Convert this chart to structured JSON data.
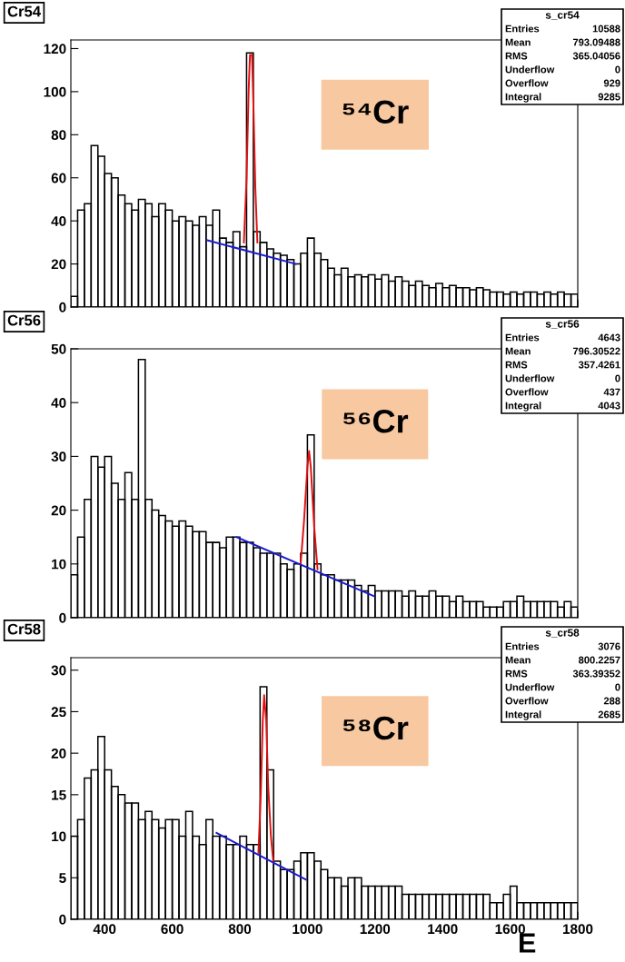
{
  "chart_data": [
    {
      "type": "histogram",
      "title": "Cr54",
      "xlim": [
        300,
        1800
      ],
      "ylim": [
        0,
        124
      ],
      "xticks": [
        400,
        600,
        800,
        1000,
        1200,
        1400,
        1600,
        1800
      ],
      "yticks": [
        0,
        20,
        40,
        60,
        80,
        100,
        120
      ],
      "tick_labels": "y",
      "grid": false,
      "legend": false,
      "annotations": [
        "⁵⁴Cr",
        "s_cr54",
        "Entries",
        "10588",
        "Mean",
        "793.09488",
        "RMS",
        "365.04056",
        "Underflow",
        "0",
        "Overflow",
        "929",
        "Integral",
        "9285"
      ],
      "series": [
        {
          "type": "histogram",
          "color": "#000000",
          "bins": [
            300,
            320,
            340,
            360,
            380,
            400,
            420,
            440,
            460,
            480,
            500,
            520,
            540,
            560,
            580,
            600,
            620,
            640,
            660,
            680,
            700,
            720,
            740,
            760,
            780,
            800,
            820,
            840,
            860,
            880,
            900,
            920,
            940,
            960,
            980,
            1000,
            1020,
            1040,
            1060,
            1080,
            1100,
            1120,
            1140,
            1160,
            1180,
            1200,
            1220,
            1240,
            1260,
            1280,
            1300,
            1320,
            1340,
            1360,
            1380,
            1400,
            1420,
            1440,
            1460,
            1480,
            1500,
            1520,
            1540,
            1560,
            1580,
            1600,
            1620,
            1640,
            1660,
            1680,
            1700,
            1720,
            1740,
            1760,
            1780,
            1800
          ],
          "values": [
            5,
            45,
            48,
            75,
            70,
            62,
            60,
            52,
            48,
            45,
            50,
            48,
            42,
            48,
            45,
            40,
            42,
            40,
            38,
            42,
            38,
            45,
            32,
            30,
            35,
            28,
            118,
            35,
            30,
            27,
            25,
            24,
            22,
            20,
            25,
            32,
            25,
            22,
            18,
            15,
            18,
            14,
            15,
            14,
            15,
            13,
            15,
            12,
            14,
            12,
            10,
            12,
            10,
            9,
            11,
            9,
            10,
            9,
            9,
            8,
            9,
            8,
            7,
            7,
            6,
            7,
            6,
            7,
            7,
            6,
            7,
            6,
            7,
            6,
            6
          ]
        },
        {
          "type": "line",
          "color": "#e01010",
          "x": [
            812,
            820,
            826,
            830,
            836,
            840,
            846,
            852
          ],
          "values": [
            30,
            60,
            100,
            117,
            117,
            95,
            55,
            30
          ]
        },
        {
          "type": "line",
          "color": "#1a1ad0",
          "x": [
            704,
            966
          ],
          "values": [
            31,
            20
          ]
        }
      ]
    },
    {
      "type": "histogram",
      "title": "Cr56",
      "xlim": [
        300,
        1800
      ],
      "ylim": [
        0,
        50
      ],
      "xticks": [
        400,
        600,
        800,
        1000,
        1200,
        1400,
        1600,
        1800
      ],
      "yticks": [
        0,
        10,
        20,
        30,
        40,
        50
      ],
      "tick_labels": "y",
      "grid": false,
      "legend": false,
      "annotations": [
        "⁵⁶Cr",
        "s_cr56",
        "Entries",
        "4643",
        "Mean",
        "796.30522",
        "RMS",
        "357.4261",
        "Underflow",
        "0",
        "Overflow",
        "437",
        "Integral",
        "4043"
      ],
      "series": [
        {
          "type": "histogram",
          "color": "#000000",
          "bins": [
            300,
            320,
            340,
            360,
            380,
            400,
            420,
            440,
            460,
            480,
            500,
            520,
            540,
            560,
            580,
            600,
            620,
            640,
            660,
            680,
            700,
            720,
            740,
            760,
            780,
            800,
            820,
            840,
            860,
            880,
            900,
            920,
            940,
            960,
            980,
            1000,
            1020,
            1040,
            1060,
            1080,
            1100,
            1120,
            1140,
            1160,
            1180,
            1200,
            1220,
            1240,
            1260,
            1280,
            1300,
            1320,
            1340,
            1360,
            1380,
            1400,
            1420,
            1440,
            1460,
            1480,
            1500,
            1520,
            1540,
            1560,
            1580,
            1600,
            1620,
            1640,
            1660,
            1680,
            1700,
            1720,
            1740,
            1760,
            1780,
            1800
          ],
          "values": [
            8,
            15,
            22,
            30,
            28,
            30,
            25,
            22,
            27,
            22,
            48,
            22,
            20,
            19,
            18,
            17,
            18,
            17,
            16,
            16,
            14,
            14,
            13,
            15,
            15,
            14,
            14,
            13,
            12,
            12,
            12,
            10,
            9,
            10,
            12,
            34,
            10,
            8,
            8,
            7,
            7,
            7,
            6,
            5,
            6,
            5,
            5,
            5,
            5,
            4,
            5,
            4,
            4,
            5,
            4,
            4,
            3,
            4,
            3,
            3,
            3,
            2,
            2,
            2,
            3,
            3,
            4,
            3,
            3,
            3,
            3,
            3,
            2,
            3,
            2
          ]
        },
        {
          "type": "line",
          "color": "#e01010",
          "x": [
            980,
            990,
            1000,
            1005,
            1010,
            1020,
            1030
          ],
          "values": [
            10,
            18,
            28,
            31,
            28,
            17,
            9
          ]
        },
        {
          "type": "line",
          "color": "#1a1ad0",
          "x": [
            790,
            1197
          ],
          "values": [
            15,
            4
          ]
        }
      ]
    },
    {
      "type": "histogram",
      "title": "Cr58",
      "xlabel": "E",
      "xlim": [
        300,
        1800
      ],
      "ylim": [
        0,
        31.5
      ],
      "xticks": [
        400,
        600,
        800,
        1000,
        1200,
        1400,
        1600,
        1800
      ],
      "yticks": [
        0,
        5,
        10,
        15,
        20,
        25,
        30
      ],
      "grid": false,
      "legend": false,
      "annotations": [
        "⁵⁸Cr",
        "s_cr58",
        "Entries",
        "3076",
        "Mean",
        "800.2257",
        "RMS",
        "363.39352",
        "Underflow",
        "0",
        "Overflow",
        "288",
        "Integral",
        "2685"
      ],
      "series": [
        {
          "type": "histogram",
          "color": "#000000",
          "bins": [
            300,
            320,
            340,
            360,
            380,
            400,
            420,
            440,
            460,
            480,
            500,
            520,
            540,
            560,
            580,
            600,
            620,
            640,
            660,
            680,
            700,
            720,
            740,
            760,
            780,
            800,
            820,
            840,
            860,
            880,
            900,
            920,
            940,
            960,
            980,
            1000,
            1020,
            1040,
            1060,
            1080,
            1100,
            1120,
            1140,
            1160,
            1180,
            1200,
            1220,
            1240,
            1260,
            1280,
            1300,
            1320,
            1340,
            1360,
            1380,
            1400,
            1420,
            1440,
            1460,
            1480,
            1500,
            1520,
            1540,
            1560,
            1580,
            1600,
            1620,
            1640,
            1660,
            1680,
            1700,
            1720,
            1740,
            1760,
            1780,
            1800
          ],
          "values": [
            10,
            12,
            17,
            18,
            22,
            18,
            16,
            15,
            14,
            14,
            12,
            13,
            12,
            11,
            12,
            12,
            10,
            13,
            10,
            9,
            12,
            10,
            10,
            9,
            9,
            10,
            9,
            9,
            28,
            18,
            7,
            6,
            6,
            7,
            8,
            8,
            7,
            6,
            5,
            5,
            4,
            5,
            5,
            4,
            4,
            4,
            4,
            4,
            4,
            3,
            3,
            3,
            3,
            3,
            3,
            3,
            3,
            3,
            3,
            3,
            3,
            3,
            2,
            2,
            3,
            4,
            2,
            2,
            2,
            2,
            2,
            2,
            2,
            2,
            2
          ]
        },
        {
          "type": "line",
          "color": "#e01010",
          "x": [
            855,
            862,
            868,
            872,
            878,
            884,
            892,
            899
          ],
          "values": [
            8,
            15,
            24,
            27,
            24,
            16,
            10,
            7
          ]
        },
        {
          "type": "line",
          "color": "#1a1ad0",
          "x": [
            731,
            995
          ],
          "values": [
            10.4,
            4.8
          ]
        }
      ]
    }
  ]
}
